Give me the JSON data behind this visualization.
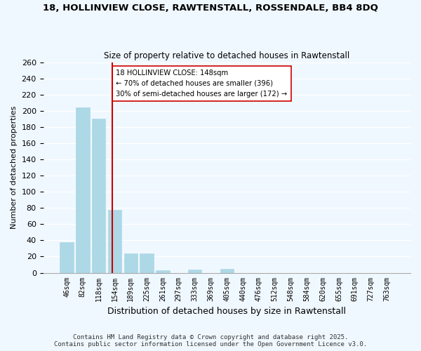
{
  "title1": "18, HOLLINVIEW CLOSE, RAWTENSTALL, ROSSENDALE, BB4 8DQ",
  "title2": "Size of property relative to detached houses in Rawtenstall",
  "xlabel": "Distribution of detached houses by size in Rawtenstall",
  "ylabel": "Number of detached properties",
  "bar_labels": [
    "46sqm",
    "82sqm",
    "118sqm",
    "154sqm",
    "189sqm",
    "225sqm",
    "261sqm",
    "297sqm",
    "333sqm",
    "369sqm",
    "405sqm",
    "440sqm",
    "476sqm",
    "512sqm",
    "548sqm",
    "584sqm",
    "620sqm",
    "655sqm",
    "691sqm",
    "727sqm",
    "763sqm"
  ],
  "bar_values": [
    38,
    204,
    190,
    78,
    24,
    24,
    3,
    0,
    4,
    0,
    5,
    0,
    0,
    0,
    0,
    0,
    0,
    0,
    0,
    0,
    0
  ],
  "bar_color": "#add8e6",
  "vline_color": "#cc0000",
  "annotation_lines": [
    "18 HOLLINVIEW CLOSE: 148sqm",
    "← 70% of detached houses are smaller (396)",
    "30% of semi-detached houses are larger (172) →"
  ],
  "ylim": [
    0,
    260
  ],
  "yticks": [
    0,
    20,
    40,
    60,
    80,
    100,
    120,
    140,
    160,
    180,
    200,
    220,
    240,
    260
  ],
  "footnote1": "Contains HM Land Registry data © Crown copyright and database right 2025.",
  "footnote2": "Contains public sector information licensed under the Open Government Licence v3.0.",
  "bg_color": "#f0f8ff",
  "vline_pos": 2.833
}
